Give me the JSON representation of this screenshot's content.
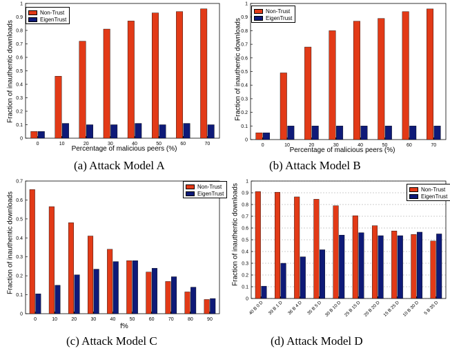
{
  "colors": {
    "nontrust": "#e23a17",
    "eigentrust": "#0e1a78"
  },
  "chart_data": [
    {
      "type": "bar",
      "caption": "(a) Attack Model A",
      "categories": [
        "0",
        "10",
        "20",
        "30",
        "40",
        "50",
        "60",
        "70"
      ],
      "series": [
        {
          "name": "Non-Trust",
          "values": [
            0.05,
            0.46,
            0.72,
            0.81,
            0.87,
            0.93,
            0.94,
            0.96
          ]
        },
        {
          "name": "EigenTrust",
          "values": [
            0.05,
            0.11,
            0.1,
            0.1,
            0.11,
            0.1,
            0.11,
            0.1
          ]
        }
      ],
      "xlabel": "Percentage of malicious peers (%)",
      "ylabel": "Fraction of inauthentic downloads",
      "ylim": [
        0,
        1
      ],
      "yticks": [
        "0",
        "0.1",
        "0.2",
        "0.3",
        "0.4",
        "0.5",
        "0.6",
        "0.7",
        "0.8",
        "0.9",
        "1"
      ],
      "grid": false,
      "legend": "top-left"
    },
    {
      "type": "bar",
      "caption": "(b) Attack Model B",
      "categories": [
        "0",
        "10",
        "20",
        "30",
        "40",
        "50",
        "60",
        "70"
      ],
      "series": [
        {
          "name": "Non-Trust",
          "values": [
            0.05,
            0.49,
            0.68,
            0.8,
            0.87,
            0.89,
            0.94,
            0.96
          ]
        },
        {
          "name": "EigenTrust",
          "values": [
            0.05,
            0.1,
            0.1,
            0.1,
            0.1,
            0.1,
            0.1,
            0.1
          ]
        }
      ],
      "xlabel": "Percentage of malicious peers (%)",
      "ylabel": "Fraction of inauthentic downloads",
      "ylim": [
        0,
        1
      ],
      "yticks": [
        "0",
        "0.1",
        "0.2",
        "0.3",
        "0.4",
        "0.5",
        "0.6",
        "0.7",
        "0.8",
        "0.9",
        "1"
      ],
      "grid": false,
      "legend": "top-left"
    },
    {
      "type": "bar",
      "caption": "(c) Attack Model C",
      "categories": [
        "0",
        "10",
        "20",
        "30",
        "40",
        "50",
        "60",
        "70",
        "80",
        "90"
      ],
      "series": [
        {
          "name": "Non-Trust",
          "values": [
            0.655,
            0.565,
            0.48,
            0.41,
            0.34,
            0.28,
            0.22,
            0.17,
            0.115,
            0.075
          ]
        },
        {
          "name": "EigenTrust",
          "values": [
            0.105,
            0.15,
            0.205,
            0.235,
            0.275,
            0.28,
            0.24,
            0.195,
            0.14,
            0.08
          ]
        }
      ],
      "xlabel": "f%",
      "ylabel": "Fraction of inauthentic downloads",
      "ylim": [
        0,
        0.7
      ],
      "yticks": [
        "0",
        "0.1",
        "0.2",
        "0.3",
        "0.4",
        "0.5",
        "0.6",
        "0.7"
      ],
      "grid": false,
      "legend": "top-right"
    },
    {
      "type": "bar",
      "caption": "(d) Attack Model D",
      "categories": [
        "40 B 0 D",
        "39 B 1 D",
        "36 B 4 D",
        "35 B 5 D",
        "30 B 10 D",
        "25 B 15 D",
        "20 B 20 D",
        "15 B 25 D",
        "10 B 30 D",
        "5 B 35 D"
      ],
      "series": [
        {
          "name": "Non-Trust",
          "values": [
            0.91,
            0.905,
            0.865,
            0.845,
            0.79,
            0.705,
            0.62,
            0.575,
            0.545,
            0.49
          ]
        },
        {
          "name": "EigenTrust",
          "values": [
            0.105,
            0.3,
            0.355,
            0.415,
            0.54,
            0.56,
            0.535,
            0.535,
            0.565,
            0.55
          ]
        }
      ],
      "xlabel": "",
      "ylabel": "Fraction of inauthentic downloads",
      "ylim": [
        0,
        1
      ],
      "yticks": [
        "0",
        "0.1",
        "0.2",
        "0.3",
        "0.4",
        "0.5",
        "0.6",
        "0.7",
        "0.8",
        "0.9",
        "1"
      ],
      "grid": true,
      "legend": "top-right"
    }
  ]
}
